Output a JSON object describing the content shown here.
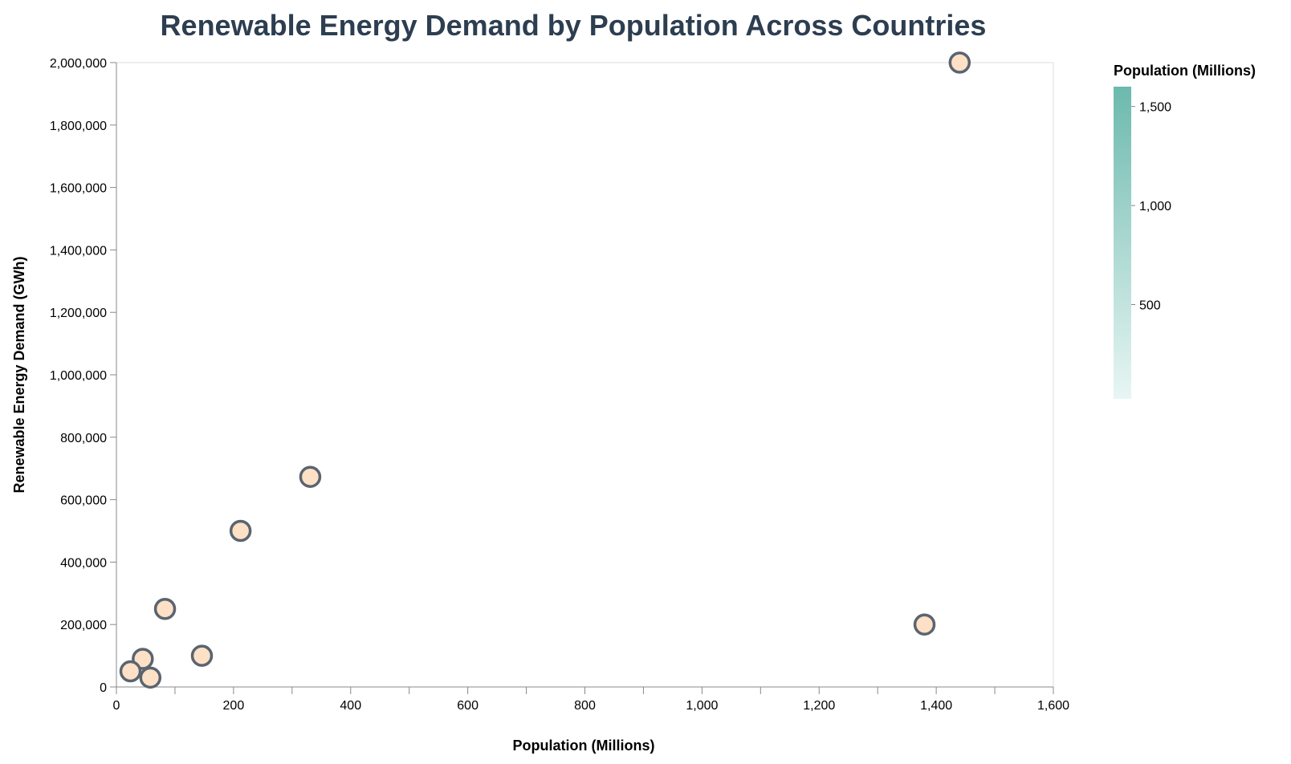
{
  "chart_data": {
    "type": "scatter",
    "title": "Renewable Energy Demand by Population Across Countries",
    "xlabel": "Population (Millions)",
    "ylabel": "Renewable Energy Demand (GWh)",
    "xlim": [
      0,
      1600
    ],
    "ylim": [
      0,
      2000000
    ],
    "x_ticks": [
      0,
      200,
      400,
      600,
      800,
      1000,
      1200,
      1400,
      1600
    ],
    "x_minor_ticks": [
      100,
      300,
      500,
      700,
      900,
      1100,
      1300,
      1500
    ],
    "y_ticks": [
      0,
      200000,
      400000,
      600000,
      800000,
      1000000,
      1200000,
      1400000,
      1600000,
      1800000,
      2000000
    ],
    "grid": false,
    "point_fill": "#fde0c5",
    "point_stroke": "#5a6470",
    "series": [
      {
        "points": [
          {
            "x": 1440,
            "y": 2000000
          },
          {
            "x": 331,
            "y": 673000
          },
          {
            "x": 212,
            "y": 500000
          },
          {
            "x": 83,
            "y": 250000
          },
          {
            "x": 1380,
            "y": 200000
          },
          {
            "x": 146,
            "y": 100000
          },
          {
            "x": 45,
            "y": 90000
          },
          {
            "x": 24,
            "y": 50000
          },
          {
            "x": 58,
            "y": 30000
          }
        ]
      }
    ],
    "legend": {
      "title": "Population (Millions)",
      "placement": "right",
      "type": "gradient",
      "domain": [
        24,
        1600
      ],
      "ticks": [
        500,
        1000,
        1500
      ],
      "color_low": "#e8f6f4",
      "color_high": "#6cb9ad"
    }
  }
}
